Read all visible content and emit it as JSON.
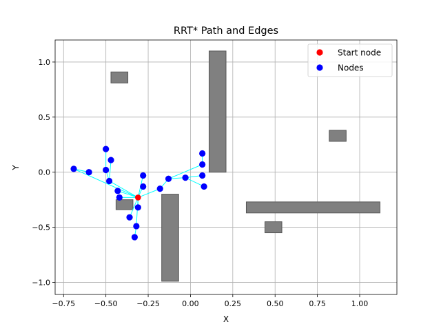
{
  "chart_data": {
    "type": "scatter",
    "title": "RRT* Path and Edges",
    "xlabel": "X",
    "ylabel": "Y",
    "xlim": [
      -0.8,
      1.22
    ],
    "ylim": [
      -1.11,
      1.2
    ],
    "x_ticks": [
      -0.75,
      -0.5,
      -0.25,
      0.0,
      0.25,
      0.5,
      0.75,
      1.0
    ],
    "x_tick_labels": [
      "−0.75",
      "−0.50",
      "−0.25",
      "0.00",
      "0.25",
      "0.50",
      "0.75",
      "1.00"
    ],
    "y_ticks": [
      -1.0,
      -0.5,
      0.0,
      0.5,
      1.0
    ],
    "y_tick_labels": [
      "−1.0",
      "−0.5",
      "0.0",
      "0.5",
      "1.0"
    ],
    "grid": true,
    "legend_position": "top-right",
    "legend": [
      {
        "label": "Start node",
        "color": "#ff0000"
      },
      {
        "label": "Nodes",
        "color": "#0000ff"
      }
    ],
    "colors": {
      "start": "#ff0000",
      "nodes": "#0000ff",
      "edges": "#00ffff",
      "obstacles": "#808080",
      "obstacle_edge": "#555555",
      "grid": "#b0b0b0"
    },
    "obstacles": [
      {
        "x0": -0.47,
        "x1": -0.37,
        "y0": 0.81,
        "y1": 0.91
      },
      {
        "x0": 0.11,
        "x1": 0.21,
        "y0": 0.0,
        "y1": 1.1
      },
      {
        "x0": 0.82,
        "x1": 0.92,
        "y0": 0.28,
        "y1": 0.38
      },
      {
        "x0": -0.44,
        "x1": -0.34,
        "y0": -0.34,
        "y1": -0.25
      },
      {
        "x0": -0.17,
        "x1": -0.07,
        "y0": -0.99,
        "y1": -0.2
      },
      {
        "x0": 0.33,
        "x1": 1.12,
        "y0": -0.37,
        "y1": -0.27
      },
      {
        "x0": 0.44,
        "x1": 0.54,
        "y0": -0.55,
        "y1": -0.45
      }
    ],
    "start": {
      "x": -0.31,
      "y": -0.23
    },
    "nodes": [
      {
        "x": -0.5,
        "y": 0.21
      },
      {
        "x": -0.47,
        "y": 0.11
      },
      {
        "x": -0.69,
        "y": 0.03
      },
      {
        "x": -0.6,
        "y": 0.0
      },
      {
        "x": -0.5,
        "y": 0.02
      },
      {
        "x": -0.48,
        "y": -0.08
      },
      {
        "x": -0.43,
        "y": -0.17
      },
      {
        "x": -0.42,
        "y": -0.23
      },
      {
        "x": -0.28,
        "y": -0.03
      },
      {
        "x": -0.28,
        "y": -0.13
      },
      {
        "x": -0.18,
        "y": -0.15
      },
      {
        "x": -0.13,
        "y": -0.06
      },
      {
        "x": -0.03,
        "y": -0.05
      },
      {
        "x": 0.07,
        "y": 0.17
      },
      {
        "x": 0.07,
        "y": 0.07
      },
      {
        "x": 0.07,
        "y": -0.03
      },
      {
        "x": 0.08,
        "y": -0.13
      },
      {
        "x": -0.31,
        "y": -0.32
      },
      {
        "x": -0.36,
        "y": -0.41
      },
      {
        "x": -0.32,
        "y": -0.49
      },
      {
        "x": -0.33,
        "y": -0.59
      }
    ],
    "edges": [
      [
        -0.31,
        -0.23,
        -0.48,
        -0.08
      ],
      [
        -0.48,
        -0.08,
        -0.5,
        0.02
      ],
      [
        -0.5,
        0.02,
        -0.5,
        0.21
      ],
      [
        -0.48,
        -0.08,
        -0.47,
        0.11
      ],
      [
        -0.31,
        -0.23,
        -0.69,
        0.03
      ],
      [
        -0.69,
        0.03,
        -0.6,
        0.0
      ],
      [
        -0.31,
        -0.23,
        -0.43,
        -0.17
      ],
      [
        -0.31,
        -0.23,
        -0.42,
        -0.23
      ],
      [
        -0.31,
        -0.23,
        -0.28,
        -0.03
      ],
      [
        -0.31,
        -0.23,
        -0.28,
        -0.13
      ],
      [
        -0.31,
        -0.23,
        -0.18,
        -0.15
      ],
      [
        -0.18,
        -0.15,
        -0.13,
        -0.06
      ],
      [
        -0.13,
        -0.06,
        -0.03,
        -0.05
      ],
      [
        -0.13,
        -0.06,
        0.07,
        0.07
      ],
      [
        0.07,
        0.07,
        0.07,
        0.17
      ],
      [
        -0.03,
        -0.05,
        0.07,
        -0.03
      ],
      [
        -0.03,
        -0.05,
        0.08,
        -0.13
      ],
      [
        -0.31,
        -0.23,
        -0.31,
        -0.32
      ],
      [
        -0.31,
        -0.23,
        -0.36,
        -0.41
      ],
      [
        -0.31,
        -0.23,
        -0.32,
        -0.49
      ],
      [
        -0.32,
        -0.49,
        -0.33,
        -0.59
      ]
    ]
  }
}
